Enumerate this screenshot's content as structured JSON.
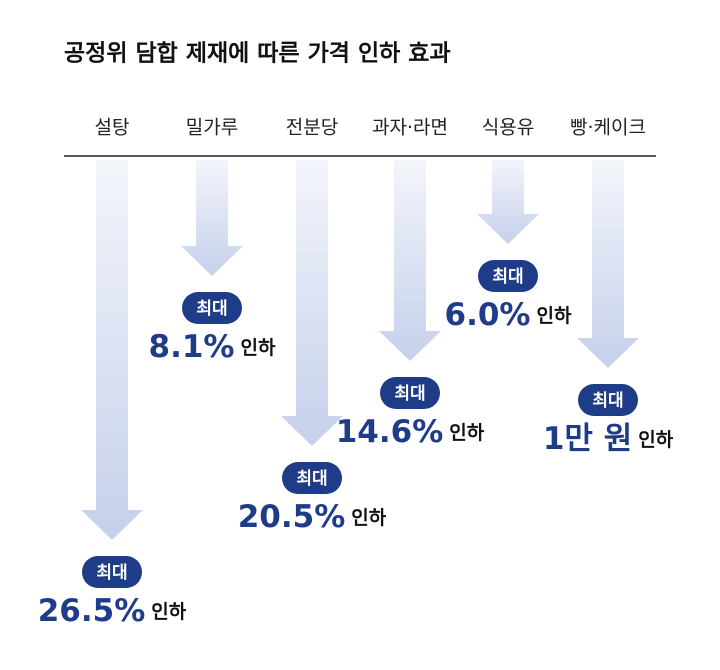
{
  "title": "공정위 담합 제재에 따른 가격 인하 효과",
  "items": [
    {
      "name": "설탕",
      "badge": "최대",
      "amount": "26.5%",
      "suffix": "인하"
    },
    {
      "name": "밀가루",
      "badge": "최대",
      "amount": "8.1%",
      "suffix": "인하"
    },
    {
      "name": "전분당",
      "badge": "최대",
      "amount": "20.5%",
      "suffix": "인하"
    },
    {
      "name": "과자·라면",
      "badge": "최대",
      "amount": "14.6%",
      "suffix": "인하"
    },
    {
      "name": "식용유",
      "badge": "최대",
      "amount": "6.0%",
      "suffix": "인하"
    },
    {
      "name": "빵·케이크",
      "badge": "최대",
      "amount": "1만 원",
      "suffix": "인하"
    }
  ]
}
